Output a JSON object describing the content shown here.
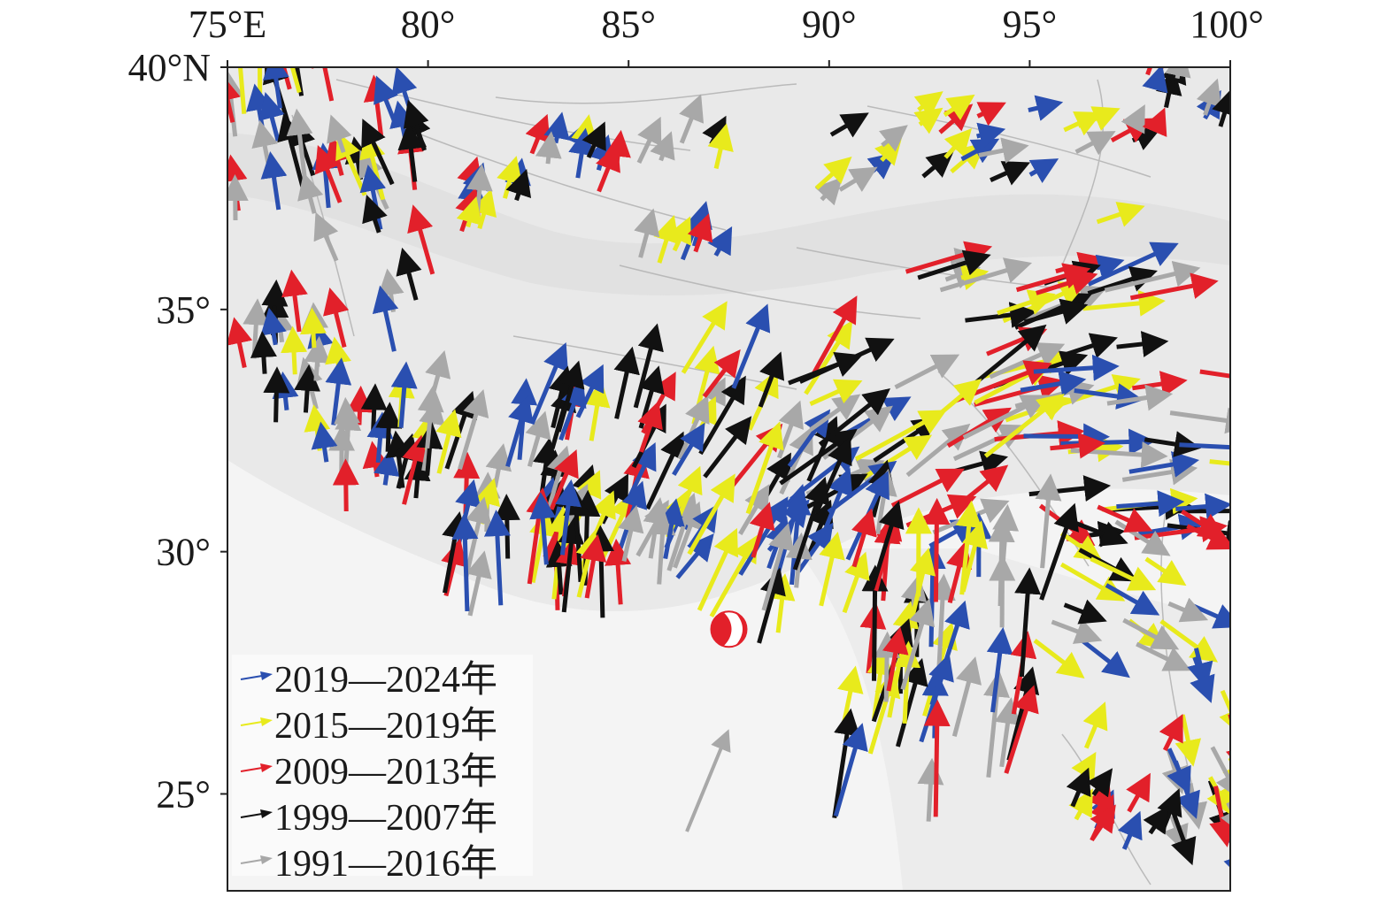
{
  "map": {
    "projection": "geographic",
    "lon_range": [
      75,
      100
    ],
    "lat_range": [
      23,
      40
    ],
    "lon_ticks": [
      {
        "value": 75,
        "label": "75°E"
      },
      {
        "value": 80,
        "label": "80°"
      },
      {
        "value": 85,
        "label": "85°"
      },
      {
        "value": 90,
        "label": "90°"
      },
      {
        "value": 95,
        "label": "95°"
      },
      {
        "value": 100,
        "label": "100°"
      }
    ],
    "lat_ticks": [
      {
        "value": 40,
        "label": "40°N"
      },
      {
        "value": 35,
        "label": "35°"
      },
      {
        "value": 30,
        "label": "30°"
      },
      {
        "value": 25,
        "label": "25°"
      }
    ],
    "basemap": "grey shaded relief with fault traces",
    "colors": {
      "relief_bg": "#f2f2f2",
      "relief_shade": "#d9d9d9",
      "fault": "#b5b5b5",
      "frame": "#222222"
    }
  },
  "legend": {
    "position": "lower-left",
    "items": [
      {
        "label": "2019—2024年",
        "color": "#2a4fb0"
      },
      {
        "label": "2015—2019年",
        "color": "#e8ea1c"
      },
      {
        "label": "2009—2013年",
        "color": "#e2202a"
      },
      {
        "label": "1999—2007年",
        "color": "#111111"
      },
      {
        "label": "1991—2016年",
        "color": "#a8a8a8"
      }
    ]
  },
  "focal_mechanism": {
    "lon": 87.5,
    "lat": 28.4,
    "colors": {
      "compressional": "#e2202a",
      "dilatational": "#ffffff"
    }
  }
}
